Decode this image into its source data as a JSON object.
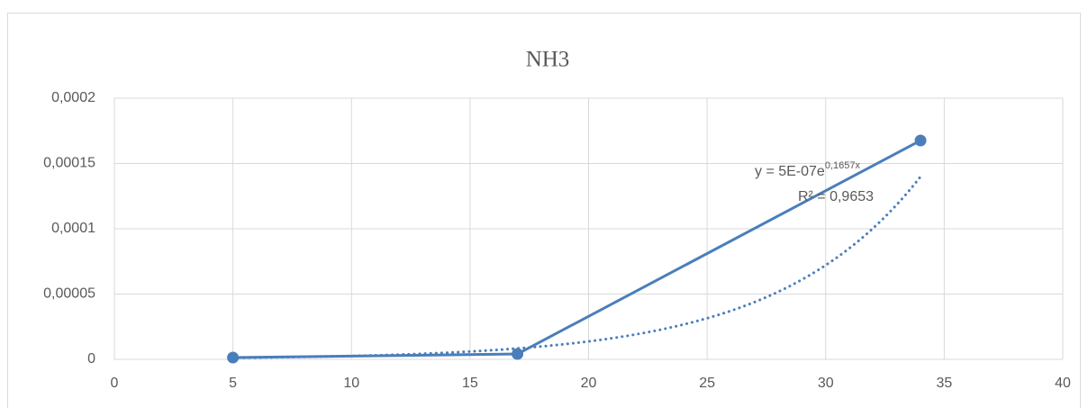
{
  "chart_data": {
    "type": "scatter",
    "title": "NH3",
    "series": [
      {
        "name": "NH3",
        "color": "#4a7ebb",
        "x": [
          5,
          17,
          34
        ],
        "values": [
          1.4e-06,
          4.1e-06,
          0.0001676
        ]
      }
    ],
    "trendline": {
      "equation": "y = 5E-07e",
      "exponent": "0,1657x",
      "r2": "R² = 0,9653",
      "a": 5e-07,
      "b": 0.1657,
      "color": "#4a7ebb",
      "style": "dotted"
    },
    "xlim": [
      0,
      40
    ],
    "xticks": [
      0,
      5,
      10,
      15,
      20,
      25,
      30,
      35,
      40
    ],
    "ylim": [
      0,
      0.0002
    ],
    "yticks": [
      0,
      {
        "value": 5e-05,
        "label": "0,00005"
      },
      {
        "value": 0.0001,
        "label": "0,0001"
      },
      {
        "value": 0.00015,
        "label": "0,00015"
      },
      {
        "value": 0.0002,
        "label": "0,0002"
      }
    ],
    "grid": true
  }
}
